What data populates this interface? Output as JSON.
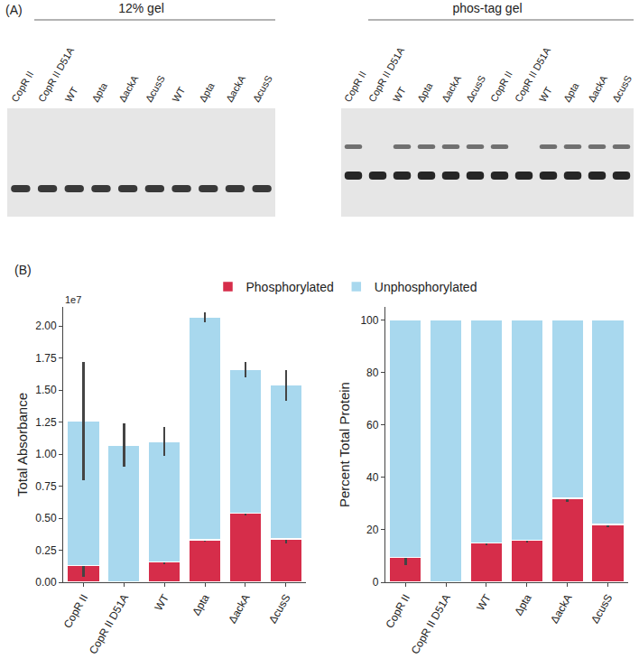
{
  "panel_a": {
    "label": "(A)",
    "gels": [
      {
        "title": "12% gel",
        "lanes": [
          {
            "label": "CopR II",
            "bands": 1
          },
          {
            "label": "CopR II D51A",
            "bands": 1
          },
          {
            "label": "WT",
            "bands": 1
          },
          {
            "label": "Δpta",
            "bands": 1
          },
          {
            "label": "ΔackA",
            "bands": 1
          },
          {
            "label": "ΔcusS",
            "bands": 1
          },
          {
            "label": "WT",
            "bands": 1
          },
          {
            "label": "Δpta",
            "bands": 1
          },
          {
            "label": "ΔackA",
            "bands": 1
          },
          {
            "label": "ΔcusS",
            "bands": 1
          }
        ]
      },
      {
        "title": "phos-tag gel",
        "lanes": [
          {
            "label": "CopR II",
            "bands": 2
          },
          {
            "label": "CopR II D51A",
            "bands": 1
          },
          {
            "label": "WT",
            "bands": 2
          },
          {
            "label": "Δpta",
            "bands": 2
          },
          {
            "label": "ΔackA",
            "bands": 2
          },
          {
            "label": "ΔcusS",
            "bands": 2
          },
          {
            "label": "CopR II",
            "bands": 2
          },
          {
            "label": "CopR II D51A",
            "bands": 1
          },
          {
            "label": "WT",
            "bands": 2
          },
          {
            "label": "Δpta",
            "bands": 2
          },
          {
            "label": "ΔackA",
            "bands": 2
          },
          {
            "label": "ΔcusS",
            "bands": 2
          }
        ]
      }
    ]
  },
  "panel_b": {
    "label": "(B)"
  },
  "chart_data": [
    {
      "type": "bar",
      "stacked": true,
      "legend": "top",
      "y_label": "Total Absorbance",
      "annotation": "1e7",
      "categories": [
        "CopR II",
        "CopR II D51A",
        "WT",
        "Δpta",
        "ΔackA",
        "ΔcusS"
      ],
      "series": [
        {
          "name": "Phosphorylated",
          "color": "#d62d4a",
          "values": [
            0.13,
            0.0,
            0.16,
            0.33,
            0.54,
            0.34
          ],
          "error": [
            0.09,
            0.0,
            0.02,
            0.01,
            0.02,
            0.04
          ]
        },
        {
          "name": "Unphosphorylated",
          "color": "#a8d8ee",
          "values": [
            1.13,
            1.07,
            0.94,
            1.74,
            1.12,
            1.2
          ],
          "error": [
            0.46,
            0.17,
            0.11,
            0.04,
            0.06,
            0.12
          ]
        }
      ],
      "ylim": [
        0,
        2.15
      ],
      "yticks": [
        {
          "value": 0,
          "label": "0.00"
        },
        0.25,
        {
          "value": 0.5,
          "label": "0.50"
        },
        0.75,
        {
          "value": 1,
          "label": "1.00"
        },
        1.25,
        {
          "value": 1.5,
          "label": "1.50"
        },
        1.75,
        {
          "value": 2,
          "label": "2.00"
        }
      ]
    },
    {
      "type": "bar",
      "stacked": true,
      "legend": "top",
      "y_label": "Percent Total Protein",
      "categories": [
        "CopR II",
        "CopR II D51A",
        "WT",
        "Δpta",
        "ΔackA",
        "ΔcusS"
      ],
      "series": [
        {
          "name": "Phosphorylated",
          "color": "#d62d4a",
          "values": [
            9.5,
            0,
            15,
            16,
            32,
            22
          ],
          "error": [
            3,
            0,
            1,
            1,
            1.5,
            1
          ]
        },
        {
          "name": "Unphosphorylated",
          "color": "#a8d8ee",
          "values": [
            90.5,
            100,
            85,
            84,
            68,
            78
          ]
        }
      ],
      "ylim": [
        0,
        105
      ],
      "yticks": [
        0,
        20,
        40,
        60,
        80,
        100
      ]
    }
  ]
}
